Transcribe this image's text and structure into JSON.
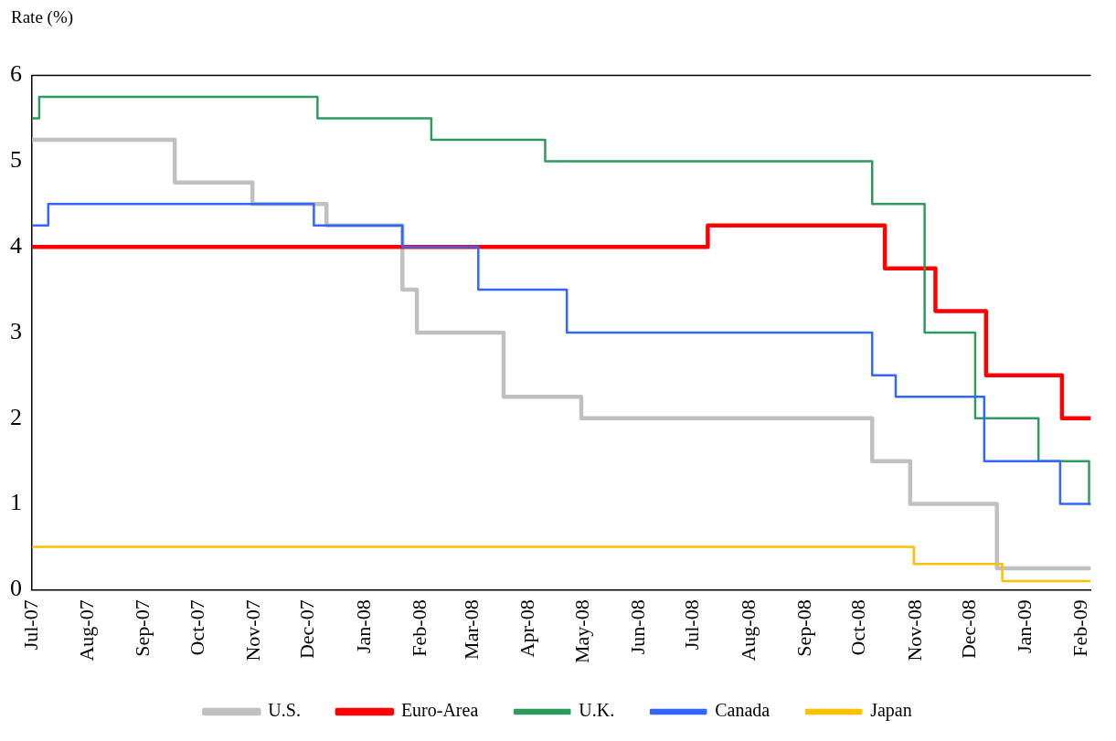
{
  "chart_data": {
    "type": "step",
    "ylabel": "Rate (%)",
    "xlim": [
      "2007-07-01",
      "2009-02-06"
    ],
    "ylim": [
      0,
      6
    ],
    "yticks": [
      0,
      1,
      2,
      3,
      4,
      5,
      6
    ],
    "xticks": [
      {
        "value": "2007-07-01",
        "label": "Jul-07"
      },
      {
        "value": "2007-08-01",
        "label": "Aug-07"
      },
      {
        "value": "2007-09-01",
        "label": "Sep-07"
      },
      {
        "value": "2007-10-01",
        "label": "Oct-07"
      },
      {
        "value": "2007-11-01",
        "label": "Nov-07"
      },
      {
        "value": "2007-12-01",
        "label": "Dec-07"
      },
      {
        "value": "2008-01-01",
        "label": "Jan-08"
      },
      {
        "value": "2008-02-01",
        "label": "Feb-08"
      },
      {
        "value": "2008-03-01",
        "label": "Mar-08"
      },
      {
        "value": "2008-04-01",
        "label": "Apr-08"
      },
      {
        "value": "2008-05-01",
        "label": "May-08"
      },
      {
        "value": "2008-06-01",
        "label": "Jun-08"
      },
      {
        "value": "2008-07-01",
        "label": "Jul-08"
      },
      {
        "value": "2008-08-01",
        "label": "Aug-08"
      },
      {
        "value": "2008-09-01",
        "label": "Sep-08"
      },
      {
        "value": "2008-10-01",
        "label": "Oct-08"
      },
      {
        "value": "2008-11-01",
        "label": "Nov-08"
      },
      {
        "value": "2008-12-01",
        "label": "Dec-08"
      },
      {
        "value": "2009-01-01",
        "label": "Jan-09"
      },
      {
        "value": "2009-02-01",
        "label": "Feb-09"
      }
    ],
    "grid": false,
    "legend": "bottom",
    "marker": "none",
    "line_style": "solid",
    "series": [
      {
        "name": "U.S.",
        "color": "#c0c0c0",
        "x": [
          "2007-07-01",
          "2007-09-18",
          "2007-10-31",
          "2007-12-11",
          "2008-01-22",
          "2008-01-30",
          "2008-03-18",
          "2008-04-30",
          "2008-10-08",
          "2008-10-29",
          "2008-12-16",
          "2009-02-06"
        ],
        "values": [
          5.25,
          4.75,
          4.5,
          4.25,
          3.5,
          3.0,
          2.25,
          2.0,
          1.5,
          1.0,
          0.25,
          0.25
        ]
      },
      {
        "name": "Euro-Area",
        "color": "#ff0000",
        "x": [
          "2007-07-01",
          "2008-07-09",
          "2008-10-15",
          "2008-11-12",
          "2008-12-10",
          "2009-01-21",
          "2009-02-06"
        ],
        "values": [
          4.0,
          4.25,
          3.75,
          3.25,
          2.5,
          2.0,
          2.0
        ]
      },
      {
        "name": "U.K.",
        "color": "#2e9a5e",
        "x": [
          "2007-07-01",
          "2007-07-05",
          "2007-12-06",
          "2008-02-07",
          "2008-04-10",
          "2008-10-08",
          "2008-11-06",
          "2008-12-04",
          "2009-01-08",
          "2009-02-05",
          "2009-02-06"
        ],
        "values": [
          5.5,
          5.75,
          5.5,
          5.25,
          5.0,
          4.5,
          3.0,
          2.0,
          1.5,
          1.0,
          1.0
        ]
      },
      {
        "name": "Canada",
        "color": "#3366ff",
        "x": [
          "2007-07-01",
          "2007-07-10",
          "2007-12-04",
          "2008-01-22",
          "2008-03-04",
          "2008-04-22",
          "2008-10-08",
          "2008-10-21",
          "2008-12-09",
          "2009-01-20",
          "2009-02-06"
        ],
        "values": [
          4.25,
          4.5,
          4.25,
          4.0,
          3.5,
          3.0,
          2.5,
          2.25,
          1.5,
          1.0,
          1.0
        ]
      },
      {
        "name": "Japan",
        "color": "#ffc000",
        "x": [
          "2007-07-01",
          "2008-10-31",
          "2008-12-19",
          "2009-02-06"
        ],
        "values": [
          0.5,
          0.3,
          0.1,
          0.1
        ]
      }
    ]
  }
}
